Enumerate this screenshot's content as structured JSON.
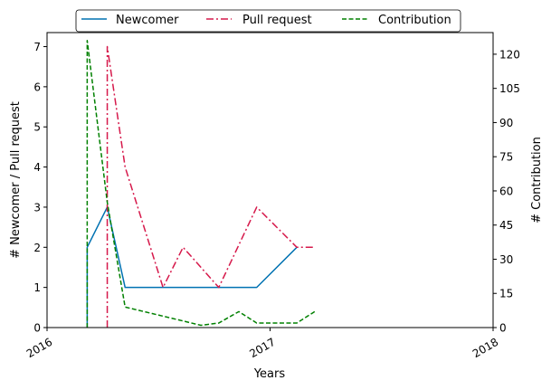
{
  "chart_data": {
    "type": "line",
    "xlabel": "Years",
    "ylabel_left": "# Newcomer / Pull request",
    "ylabel_right": "# Contribution",
    "xlim": [
      2016.0,
      2018.0
    ],
    "ylim_left": [
      0,
      7.35
    ],
    "ylim_right": [
      0,
      129.5
    ],
    "x_ticks": [
      {
        "value": 2016,
        "label": "2016"
      },
      {
        "value": 2017,
        "label": "2017"
      },
      {
        "value": 2018,
        "label": "2018"
      }
    ],
    "y_ticks_left": [
      "0",
      "1",
      "2",
      "3",
      "4",
      "5",
      "6",
      "7"
    ],
    "y_ticks_right": [
      "0",
      "15",
      "30",
      "45",
      "60",
      "75",
      "90",
      "105",
      "120"
    ],
    "legend_position": "top-center",
    "grid": false,
    "series": [
      {
        "name": "Newcomer",
        "axis": "left",
        "color": "#0072b2",
        "style": "solid",
        "points": [
          [
            2016.18,
            0
          ],
          [
            2016.18,
            2
          ],
          [
            2016.27,
            3
          ],
          [
            2016.35,
            1
          ],
          [
            2016.52,
            1
          ],
          [
            2016.69,
            1
          ],
          [
            2016.8,
            1
          ],
          [
            2016.94,
            1
          ],
          [
            2017.12,
            2
          ]
        ]
      },
      {
        "name": "Pull request",
        "axis": "left",
        "color": "#d6194b",
        "style": "dashdot",
        "points": [
          [
            2016.27,
            0
          ],
          [
            2016.27,
            7
          ],
          [
            2016.35,
            4
          ],
          [
            2016.52,
            1
          ],
          [
            2016.61,
            2
          ],
          [
            2016.77,
            1
          ],
          [
            2016.94,
            3
          ],
          [
            2017.12,
            2
          ],
          [
            2017.2,
            2
          ]
        ]
      },
      {
        "name": "Contribution",
        "axis": "right",
        "color": "#008000",
        "style": "dashed",
        "points": [
          [
            2016.18,
            0
          ],
          [
            2016.18,
            126
          ],
          [
            2016.27,
            55
          ],
          [
            2016.35,
            9
          ],
          [
            2016.52,
            5
          ],
          [
            2016.69,
            1
          ],
          [
            2016.77,
            2
          ],
          [
            2016.86,
            7
          ],
          [
            2016.94,
            2
          ],
          [
            2017.12,
            2
          ],
          [
            2017.2,
            7
          ]
        ]
      }
    ]
  }
}
